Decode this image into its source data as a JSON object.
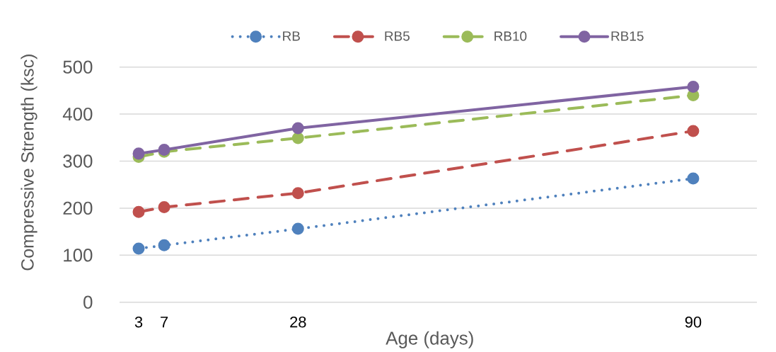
{
  "chart_data": {
    "type": "line",
    "xlabel": "Age (days)",
    "ylabel": "Compressive Strength (ksc)",
    "x": [
      3,
      7,
      28,
      90
    ],
    "series": [
      {
        "name": "RB",
        "color": "#4f81bd",
        "line_style": "dotted",
        "values": [
          114,
          121,
          156,
          263
        ]
      },
      {
        "name": "RB5",
        "color": "#c0504d",
        "line_style": "dashed",
        "values": [
          192,
          202,
          232,
          364
        ]
      },
      {
        "name": "RB10",
        "color": "#9bbb59",
        "line_style": "dashed",
        "values": [
          309,
          320,
          349,
          440
        ]
      },
      {
        "name": "RB15",
        "color": "#8064a2",
        "line_style": "solid",
        "values": [
          316,
          324,
          370,
          458
        ]
      }
    ],
    "xlim": [
      0,
      100
    ],
    "xticks": [
      3,
      7,
      28,
      90
    ],
    "ylim": [
      0,
      500
    ],
    "yticks": [
      0,
      100,
      200,
      300,
      400,
      500
    ],
    "grid": "y",
    "legend": "top",
    "marker": "circle"
  }
}
